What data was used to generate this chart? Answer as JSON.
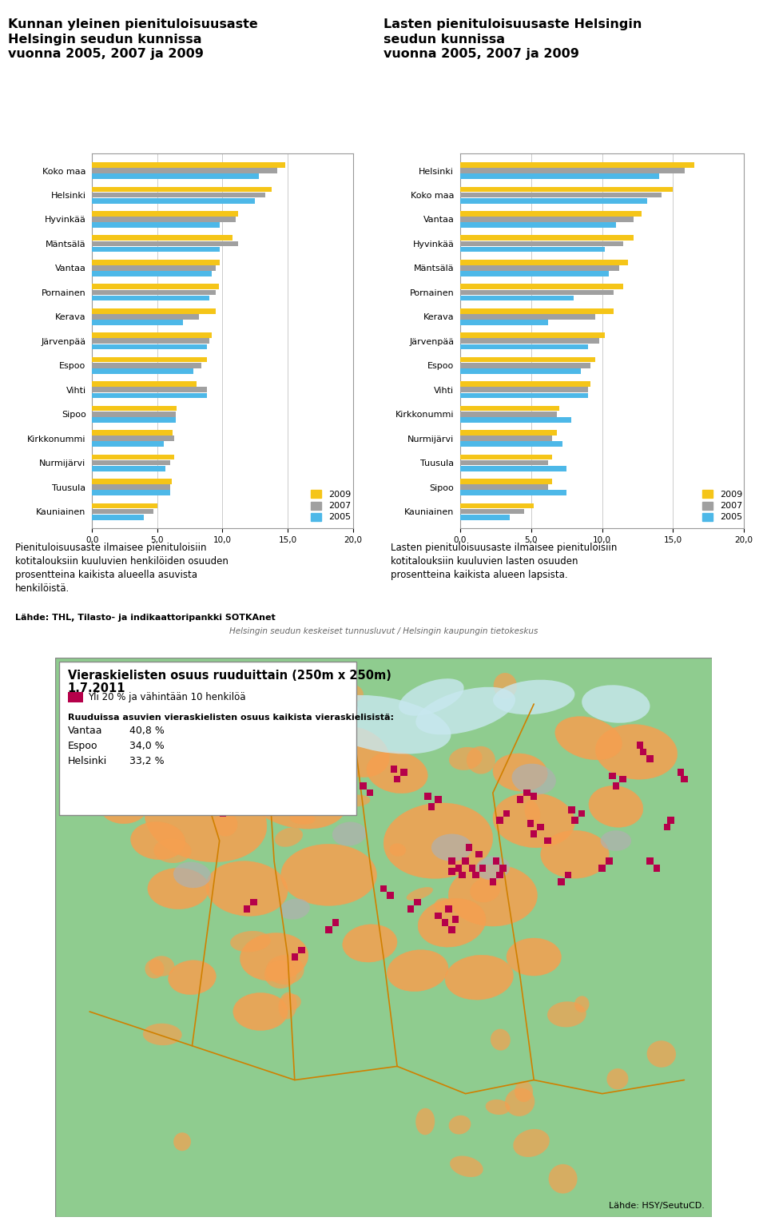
{
  "left_title_line1": "Kunnan yleinen pienituloisuusaste",
  "left_title_line2": "Helsingin seudun kunnissa",
  "left_title_line3": "vuonna 2005, 2007 ja 2009",
  "right_title_line1": "Lasten pienituloisuusaste Helsingin",
  "right_title_line2": "seudun kunnissa",
  "right_title_line3": "vuonna 2005, 2007 ja 2009",
  "left_categories": [
    "Koko maa",
    "Helsinki",
    "Hyvinkää",
    "Mäntsälä",
    "Vantaa",
    "Pornainen",
    "Kerava",
    "Järvenpää",
    "Espoo",
    "Vihti",
    "Sipoo",
    "Kirkkonummi",
    "Nurmijärvi",
    "Tuusula",
    "Kauniainen"
  ],
  "right_categories": [
    "Helsinki",
    "Koko maa",
    "Vantaa",
    "Hyvinkää",
    "Mäntsälä",
    "Pornainen",
    "Kerava",
    "Järvenpää",
    "Espoo",
    "Vihti",
    "Kirkkonummi",
    "Nurmijärvi",
    "Tuusula",
    "Sipoo",
    "Kauniainen"
  ],
  "left_2009": [
    14.8,
    13.8,
    11.2,
    10.8,
    9.8,
    9.7,
    9.5,
    9.2,
    8.8,
    8.0,
    6.5,
    6.2,
    6.3,
    6.1,
    5.0
  ],
  "left_2007": [
    14.2,
    13.3,
    11.0,
    11.2,
    9.5,
    9.5,
    8.2,
    9.0,
    8.4,
    8.8,
    6.4,
    6.3,
    6.0,
    6.0,
    4.7
  ],
  "left_2005": [
    12.8,
    12.5,
    9.8,
    9.8,
    9.2,
    9.0,
    7.0,
    8.8,
    7.8,
    8.8,
    6.4,
    5.5,
    5.6,
    6.0,
    4.0
  ],
  "right_2009": [
    16.5,
    15.0,
    12.8,
    12.2,
    11.8,
    11.5,
    10.8,
    10.2,
    9.5,
    9.2,
    7.0,
    6.8,
    6.5,
    6.5,
    5.2
  ],
  "right_2007": [
    15.8,
    14.2,
    12.2,
    11.5,
    11.2,
    10.8,
    9.5,
    9.8,
    9.2,
    9.0,
    6.8,
    6.5,
    6.2,
    6.2,
    4.5
  ],
  "right_2005": [
    14.0,
    13.2,
    11.0,
    10.2,
    10.5,
    8.0,
    6.2,
    9.0,
    8.5,
    9.0,
    7.8,
    7.2,
    7.5,
    7.5,
    3.5
  ],
  "color_2009": "#F5C518",
  "color_2007": "#A0A0A0",
  "color_2005": "#4DB8E8",
  "xlim": [
    0,
    20
  ],
  "xticks": [
    0.0,
    5.0,
    10.0,
    15.0,
    20.0
  ],
  "xtick_labels": [
    "0,0",
    "5,0",
    "10,0",
    "15,0",
    "20,0"
  ],
  "bottom_left_text1": "Pienituloisuusaste ilmaisee pienituloisiin",
  "bottom_left_text2": "kotitalouksiin kuuluvien henkilöiden osuuden",
  "bottom_left_text3": "prosentteina kaikista alueella asuvista",
  "bottom_left_text4": "henkilöistä.",
  "bottom_left_source": "Lähde: THL, Tilasto- ja indikaattoripankki SOTKAnet",
  "bottom_right_text1": "Lasten pienituloisuusaste ilmaisee pienituloisiin",
  "bottom_right_text2": "kotitalouksiin kuuluvien lasten osuuden",
  "bottom_right_text3": "prosentteina kaikista alueen lapsista.",
  "footer_text": "Helsingin seudun keskeiset tunnusluvut / Helsingin kaupungin tietokeskus",
  "map_title_line1": "Vieraskielisten osuus ruuduittain (250m x 250m)",
  "map_title_line2": "1.7.2011",
  "map_legend_text": "Yli 20 % ja vähintään 10 henkilöä",
  "map_stats_title": "Ruuduissa asuvien vieraskielisten osuus kaikista vieraskielisistä:",
  "map_stats": [
    [
      "Vantaa",
      "40,8 %"
    ],
    [
      "Espoo",
      "34,0 %"
    ],
    [
      "Helsinki",
      "33,2 %"
    ]
  ],
  "map_source": "Lähde: HSY/SeutuCD.",
  "map_bg_color": "#8fcc8f",
  "map_orange_color": "#f5a050",
  "map_gray_color": "#b0b0b0",
  "map_magenta_color": "#b5004a",
  "map_water_color": "#c8e8f0",
  "map_border_color": "#d08000"
}
